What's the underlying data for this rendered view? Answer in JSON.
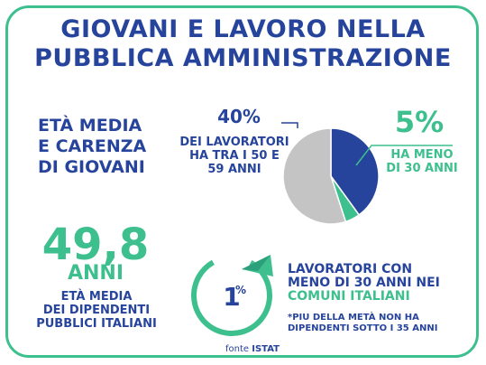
{
  "title_lines": [
    "GIOVANI E LAVORO NELLA",
    "PUBBLICA AMMINISTRAZIONE"
  ],
  "heading_lines": [
    "ETÀ MEDIA",
    "E CARENZA",
    "DI GIOVANI"
  ],
  "average_age": {
    "value": "49,8",
    "unit": "ANNI",
    "desc_lines": [
      "ETÀ MEDIA",
      "DEI DIPENDENTI",
      "PUBBLICI ITALIANI"
    ]
  },
  "chart_data": {
    "type": "pie",
    "slices": [
      {
        "label_lines": [
          "DEI LAVORATORI",
          "HA TRA I 50 E",
          "59 ANNI"
        ],
        "value": 40,
        "display": "40%",
        "color": "#27449c"
      },
      {
        "label_lines": [
          "HA MENO",
          "DI 30 ANNI"
        ],
        "value": 5,
        "display": "5%",
        "color": "#3dbf8e"
      },
      {
        "label_lines": [],
        "value": 55,
        "display": "",
        "color": "#c4c4c4"
      }
    ]
  },
  "workers": {
    "gauge_value": "1",
    "gauge_unit": "%",
    "gauge_fraction": 0.01,
    "lines": [
      "LAVORATORI CON",
      "MENO DI 30 ANNI NEI"
    ],
    "highlight": "COMUNI ITALIANI",
    "note_lines": [
      "*PIU DELLA METÀ NON HA",
      "DIPENDENTI SOTTO I 35 ANNI"
    ]
  },
  "source": {
    "prefix": "fonte",
    "name": "ISTAT"
  },
  "colors": {
    "primary": "#27449c",
    "accent": "#3dbf8e",
    "grey": "#c4c4c4"
  }
}
